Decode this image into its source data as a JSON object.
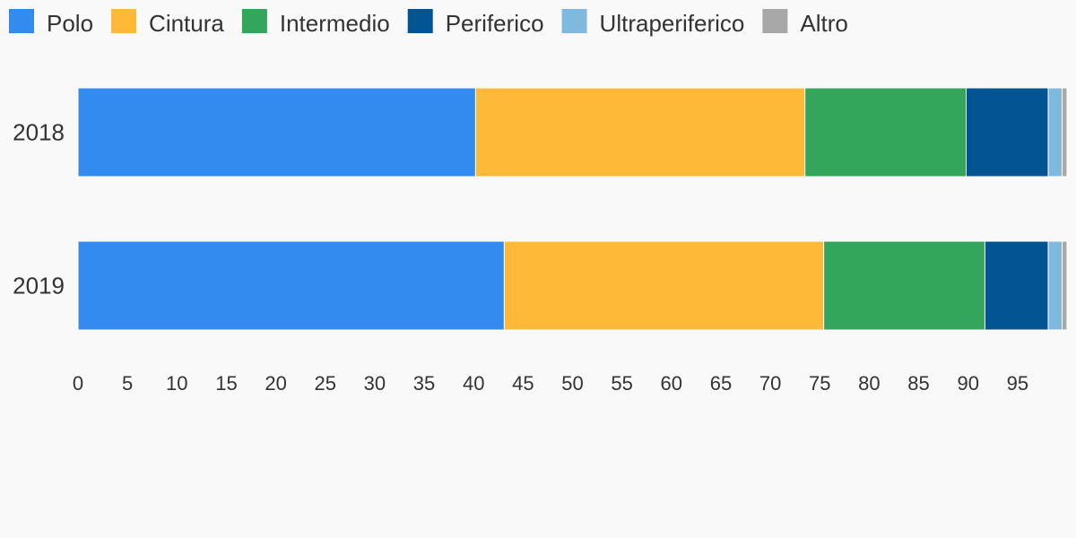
{
  "chart_data": {
    "type": "bar",
    "orientation": "horizontal",
    "stacked": true,
    "categories": [
      "2018",
      "2019"
    ],
    "series": [
      {
        "name": "Polo",
        "color": "#348bef",
        "values": [
          40.2,
          43.1
        ]
      },
      {
        "name": "Cintura",
        "color": "#ffb939",
        "values": [
          33.3,
          32.3
        ]
      },
      {
        "name": "Intermedio",
        "color": "#33a65b",
        "values": [
          16.3,
          16.3
        ]
      },
      {
        "name": "Periferico",
        "color": "#025592",
        "values": [
          8.3,
          6.4
        ]
      },
      {
        "name": "Ultraperiferico",
        "color": "#80b9df",
        "values": [
          1.4,
          1.4
        ]
      },
      {
        "name": "Altro",
        "color": "#a8a8a8",
        "values": [
          0.5,
          0.5
        ]
      }
    ],
    "xlim": [
      0,
      100
    ],
    "xticks": [
      "0",
      "5",
      "10",
      "15",
      "20",
      "25",
      "30",
      "35",
      "40",
      "45",
      "50",
      "55",
      "60",
      "65",
      "70",
      "75",
      "80",
      "85",
      "90",
      "95"
    ],
    "grid": false,
    "legend_position": "top-left",
    "title": "",
    "xlabel": "",
    "ylabel": ""
  }
}
